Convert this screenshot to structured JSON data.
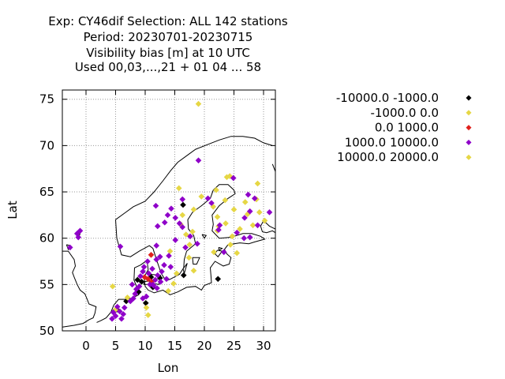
{
  "chart_data": {
    "type": "scatter",
    "title_lines": [
      "Exp: CY46dif   Selection: ALL    142 stations",
      "Period: 20230701-20230715",
      "Visibility bias [m] at  10 UTC",
      "Used  00,03,...,21  + 01 04 ... 58"
    ],
    "xlabel": "Lon",
    "ylabel": "Lat",
    "xlim": [
      -4,
      32
    ],
    "ylim": [
      50,
      76
    ],
    "xticks": [
      0,
      5,
      10,
      15,
      20,
      25,
      30
    ],
    "yticks": [
      50,
      55,
      60,
      65,
      70,
      75
    ],
    "grid": true,
    "legend_position": "right",
    "series": [
      {
        "name": "-10000.0 -1000.0",
        "color": "#000000",
        "points": [
          [
            5.2,
            52.3
          ],
          [
            6.8,
            53.2
          ],
          [
            8.7,
            55.5
          ],
          [
            9.4,
            55.3
          ],
          [
            10.1,
            53.0
          ],
          [
            11.0,
            55.8
          ],
          [
            12.5,
            55.7
          ],
          [
            16.5,
            56.0
          ],
          [
            22.3,
            55.6
          ],
          [
            16.4,
            63.6
          ],
          [
            8.9,
            54.2
          ],
          [
            11.3,
            54.7
          ]
        ]
      },
      {
        "name": "-1000.0 0.0",
        "color": "#e6d745",
        "points": [
          [
            19.0,
            74.5
          ],
          [
            4.5,
            54.8
          ],
          [
            5.0,
            52.3
          ],
          [
            7.0,
            53.6
          ],
          [
            10.5,
            51.7
          ],
          [
            13.9,
            54.3
          ],
          [
            17.5,
            59.3
          ],
          [
            18.0,
            60.7
          ],
          [
            16.3,
            62.5
          ],
          [
            15.7,
            65.4
          ],
          [
            18.2,
            63.1
          ],
          [
            19.5,
            64.5
          ],
          [
            21.5,
            63.4
          ],
          [
            22.0,
            65.2
          ],
          [
            23.8,
            66.6
          ],
          [
            24.3,
            66.7
          ],
          [
            23.5,
            64.1
          ],
          [
            25.0,
            63.1
          ],
          [
            27.3,
            62.6
          ],
          [
            28.8,
            64.2
          ],
          [
            29.0,
            65.9
          ],
          [
            26.9,
            63.9
          ],
          [
            22.2,
            62.3
          ],
          [
            22.4,
            61.3
          ],
          [
            22.2,
            60.8
          ],
          [
            23.6,
            61.6
          ],
          [
            24.7,
            60.2
          ],
          [
            26.0,
            61.0
          ],
          [
            28.2,
            61.4
          ],
          [
            24.4,
            59.3
          ],
          [
            21.6,
            58.5
          ],
          [
            25.5,
            58.4
          ],
          [
            17.4,
            57.9
          ],
          [
            18.2,
            56.5
          ],
          [
            15.3,
            56.2
          ],
          [
            14.2,
            58.6
          ],
          [
            16.0,
            61.5
          ],
          [
            16.9,
            60.4
          ],
          [
            10.2,
            52.5
          ],
          [
            14.8,
            55.1
          ]
        ]
      },
      {
        "name": "0.0 1000.0",
        "color": "#e0201c",
        "points": [
          [
            10.5,
            55.6
          ],
          [
            11.1,
            55.3
          ],
          [
            11.0,
            58.2
          ],
          [
            9.9,
            55.8
          ]
        ]
      },
      {
        "name": "1000.0 10000.0",
        "color": "#8f00c9",
        "points": [
          [
            -1.5,
            60.5
          ],
          [
            -1.0,
            60.8
          ],
          [
            -1.3,
            60.1
          ],
          [
            -2.7,
            59.0
          ],
          [
            4.4,
            51.3
          ],
          [
            4.6,
            52.0
          ],
          [
            5.0,
            51.6
          ],
          [
            5.3,
            52.6
          ],
          [
            5.7,
            52.1
          ],
          [
            6.0,
            51.3
          ],
          [
            6.3,
            51.8
          ],
          [
            6.5,
            52.5
          ],
          [
            7.5,
            53.2
          ],
          [
            8.0,
            53.5
          ],
          [
            8.3,
            54.0
          ],
          [
            8.5,
            54.5
          ],
          [
            9.0,
            54.8
          ],
          [
            9.2,
            55.9
          ],
          [
            9.6,
            56.4
          ],
          [
            9.8,
            56.9
          ],
          [
            10.4,
            57.5
          ],
          [
            10.6,
            56.2
          ],
          [
            10.8,
            55.0
          ],
          [
            11.4,
            54.9
          ],
          [
            11.7,
            55.5
          ],
          [
            12.1,
            56.0
          ],
          [
            12.6,
            55.3
          ],
          [
            12.0,
            54.6
          ],
          [
            11.2,
            56.7
          ],
          [
            12.8,
            56.4
          ],
          [
            13.2,
            57.1
          ],
          [
            13.6,
            55.6
          ],
          [
            14.0,
            58.1
          ],
          [
            12.5,
            58.0
          ],
          [
            11.9,
            59.2
          ],
          [
            12.1,
            61.3
          ],
          [
            13.3,
            61.7
          ],
          [
            11.8,
            63.5
          ],
          [
            14.4,
            63.2
          ],
          [
            15.1,
            62.2
          ],
          [
            15.8,
            61.6
          ],
          [
            16.3,
            64.2
          ],
          [
            17.6,
            60.2
          ],
          [
            18.8,
            59.4
          ],
          [
            19.0,
            68.4
          ],
          [
            20.6,
            64.3
          ],
          [
            21.2,
            63.8
          ],
          [
            22.4,
            60.9
          ],
          [
            23.3,
            58.5
          ],
          [
            25.5,
            60.6
          ],
          [
            26.8,
            62.2
          ],
          [
            27.7,
            62.9
          ],
          [
            28.5,
            64.3
          ],
          [
            29.0,
            61.4
          ],
          [
            31.0,
            62.8
          ],
          [
            27.7,
            60.1
          ],
          [
            24.9,
            66.5
          ],
          [
            15.1,
            59.8
          ],
          [
            16.3,
            61.2
          ],
          [
            16.8,
            59.0
          ],
          [
            14.3,
            56.9
          ],
          [
            11.9,
            57.7
          ],
          [
            7.8,
            55.0
          ],
          [
            9.6,
            53.5
          ],
          [
            11.3,
            55.0
          ],
          [
            10.2,
            53.7
          ],
          [
            5.8,
            59.1
          ],
          [
            13.8,
            62.5
          ],
          [
            22.6,
            61.4
          ],
          [
            27.4,
            64.7
          ],
          [
            26.7,
            60.0
          ]
        ]
      },
      {
        "name": "10000.0 20000.0",
        "color": "#e6d745",
        "points": [
          [
            29.3,
            62.8
          ],
          [
            30.2,
            61.9
          ]
        ]
      }
    ]
  }
}
